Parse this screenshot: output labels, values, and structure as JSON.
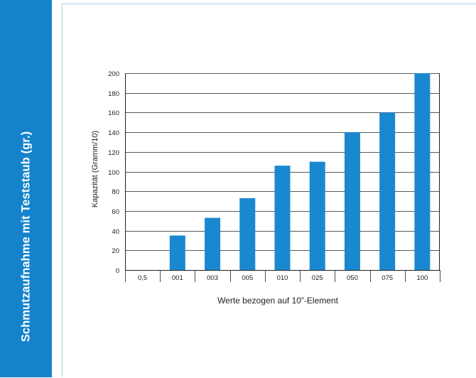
{
  "sidebar": {
    "title": "Schmutzaufnahme mit Teststaub (gr.)"
  },
  "colors": {
    "accent": "#1583cc",
    "bar": "#1a88d0",
    "panel_border": "#a8d4ee"
  },
  "chart_data": {
    "type": "bar",
    "categories": [
      "0,5",
      "001",
      "003",
      "005",
      "010",
      "025",
      "050",
      "075",
      "100"
    ],
    "values": [
      0,
      35,
      53,
      73,
      106,
      110,
      140,
      160,
      200
    ],
    "xlabel": "Werte bezogen auf 10”-Element",
    "ylabel": "Kapazität (Gramm/10)",
    "ylim": [
      0,
      200
    ],
    "yticks": [
      0,
      20,
      40,
      60,
      80,
      100,
      120,
      140,
      160,
      180,
      200
    ],
    "grid": true,
    "legend": "none"
  }
}
